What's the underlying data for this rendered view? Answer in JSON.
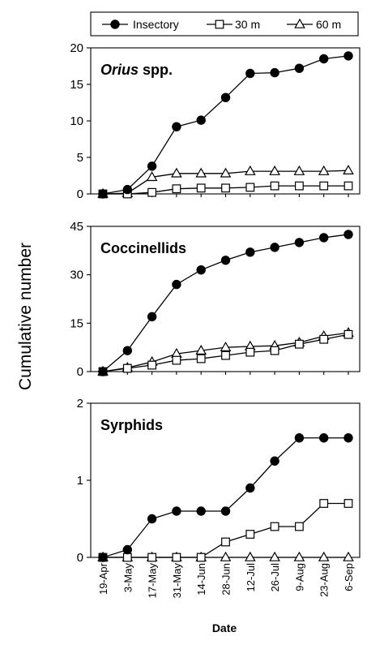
{
  "chart_data": {
    "type": "line",
    "ylabel": "Cumulative number",
    "xlabel": "Date",
    "x": [
      "19-Apr",
      "3-May",
      "17-May",
      "31-May",
      "14-Jun",
      "28-Jun",
      "12-Jul",
      "26-Jul",
      "9-Aug",
      "23-Aug",
      "6-Sep"
    ],
    "legend": {
      "placement": "top",
      "entries": [
        {
          "label": "Insectory",
          "marker": "filled-circle"
        },
        {
          "label": "30 m",
          "marker": "open-square"
        },
        {
          "label": "60 m",
          "marker": "open-triangle"
        }
      ]
    },
    "panels": [
      {
        "title": "Orius",
        "title_suffix": " spp.",
        "ylim": [
          0,
          20
        ],
        "yticks": [
          0,
          5,
          10,
          15,
          20
        ],
        "series": [
          {
            "name": "Insectory",
            "values": [
              0,
              0.6,
              3.8,
              9.2,
              10.1,
              13.2,
              16.5,
              16.6,
              17.2,
              18.5,
              18.9
            ]
          },
          {
            "name": "30 m",
            "values": [
              0,
              0,
              0.2,
              0.7,
              0.8,
              0.8,
              0.9,
              1.1,
              1.1,
              1.1,
              1.1
            ]
          },
          {
            "name": "60 m",
            "values": [
              0,
              0.1,
              2.3,
              2.8,
              2.8,
              2.8,
              3.1,
              3.1,
              3.1,
              3.1,
              3.2
            ]
          }
        ]
      },
      {
        "title": "Coccinellids",
        "title_suffix": "",
        "ylim": [
          0,
          45
        ],
        "yticks": [
          0,
          15,
          30,
          45
        ],
        "series": [
          {
            "name": "Insectory",
            "values": [
              0,
              6.5,
              17,
              27,
              31.5,
              34.5,
              37,
              38.5,
              40,
              41.5,
              42.5
            ]
          },
          {
            "name": "30 m",
            "values": [
              0,
              1,
              2,
              3.5,
              4,
              5,
              6,
              6.5,
              8.5,
              10,
              11.5
            ]
          },
          {
            "name": "60 m",
            "values": [
              0,
              1.2,
              3,
              5.5,
              6.5,
              7.5,
              7.8,
              8,
              9,
              11,
              12
            ]
          }
        ]
      },
      {
        "title": "Syrphids",
        "title_suffix": "",
        "ylim": [
          0,
          2
        ],
        "yticks": [
          0,
          1,
          2
        ],
        "series": [
          {
            "name": "Insectory",
            "values": [
              0,
              0.1,
              0.5,
              0.6,
              0.6,
              0.6,
              0.9,
              1.25,
              1.55,
              1.55,
              1.55
            ]
          },
          {
            "name": "30 m",
            "values": [
              0,
              0,
              0,
              0,
              0,
              0.2,
              0.3,
              0.4,
              0.4,
              0.7,
              0.7
            ]
          },
          {
            "name": "60 m",
            "values": [
              0,
              0,
              0,
              0,
              0,
              0,
              0,
              0,
              0,
              0,
              0
            ]
          }
        ]
      }
    ]
  }
}
